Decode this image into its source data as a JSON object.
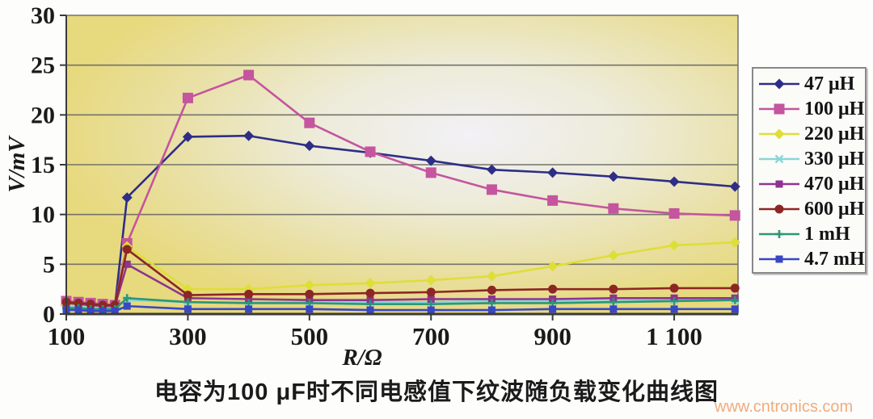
{
  "figure": {
    "caption": "电容为100 μF时不同电感值下纹波随负载变化曲线图",
    "watermark": "www.cntronics.com"
  },
  "colors": {
    "plot_bg_yellow": "#e8db82",
    "plot_bg_light": "#f2f1f6",
    "gridline": "#73736a",
    "axis": "#3a3a35",
    "legend_border": "#88888a",
    "watermark": "#f0a36e"
  },
  "chart_data": {
    "type": "line",
    "title": "电容为100 μF时不同电感值下纹波随负载变化曲线图",
    "xlabel": "R/Ω",
    "ylabel": "V/mV",
    "xlim": [
      100,
      1210
    ],
    "ylim": [
      0,
      30
    ],
    "grid": "horizontal",
    "legend_position": "right",
    "x_ticks": [
      100,
      300,
      500,
      700,
      900,
      1100
    ],
    "x_tick_labels": [
      "100",
      "300",
      "500",
      "700",
      "900",
      "1 100"
    ],
    "y_ticks": [
      0,
      5,
      10,
      15,
      20,
      25,
      30
    ],
    "x": [
      100,
      120,
      140,
      160,
      180,
      200,
      300,
      400,
      500,
      600,
      700,
      800,
      900,
      1000,
      1100,
      1200
    ],
    "series": [
      {
        "name": "47 μH",
        "color": "#2e2e87",
        "marker": "diamond",
        "values": [
          1.0,
          0.9,
          0.9,
          0.8,
          0.8,
          11.7,
          17.8,
          17.9,
          16.9,
          16.2,
          15.4,
          14.5,
          14.2,
          13.8,
          13.3,
          12.8
        ]
      },
      {
        "name": "100 μH",
        "color": "#c4559e",
        "marker": "square",
        "values": [
          1.3,
          1.2,
          1.1,
          1.0,
          0.9,
          7.1,
          21.7,
          24.0,
          19.2,
          16.3,
          14.2,
          12.5,
          11.4,
          10.6,
          10.1,
          9.9
        ]
      },
      {
        "name": "220 μH",
        "color": "#dede38",
        "marker": "diamond",
        "values": [
          0.9,
          0.8,
          0.8,
          0.7,
          0.7,
          6.8,
          2.5,
          2.5,
          2.9,
          3.1,
          3.4,
          3.8,
          4.8,
          5.9,
          6.9,
          7.2
        ]
      },
      {
        "name": "330 μH",
        "color": "#8ad6d6",
        "marker": "x",
        "values": [
          0.8,
          0.7,
          0.7,
          0.6,
          0.6,
          1.4,
          1.2,
          1.2,
          1.2,
          1.2,
          1.2,
          1.3,
          1.3,
          1.3,
          1.4,
          1.4
        ]
      },
      {
        "name": "470 μH",
        "color": "#8e3490",
        "marker": "square-small",
        "values": [
          1.1,
          1.0,
          0.9,
          0.8,
          0.8,
          5.0,
          1.6,
          1.5,
          1.4,
          1.4,
          1.5,
          1.5,
          1.5,
          1.6,
          1.6,
          1.6
        ]
      },
      {
        "name": "600 μH",
        "color": "#8c2723",
        "marker": "circle",
        "values": [
          1.2,
          1.1,
          1.0,
          0.9,
          0.9,
          6.5,
          1.9,
          2.0,
          2.0,
          2.1,
          2.2,
          2.4,
          2.5,
          2.5,
          2.6,
          2.6
        ]
      },
      {
        "name": "1 mH",
        "color": "#2e9674",
        "marker": "plus",
        "values": [
          0.6,
          0.6,
          0.5,
          0.5,
          0.5,
          1.6,
          1.2,
          1.1,
          1.1,
          1.0,
          1.0,
          1.1,
          1.1,
          1.2,
          1.3,
          1.4
        ]
      },
      {
        "name": "4.7 mH",
        "color": "#3947c4",
        "marker": "square-small",
        "values": [
          0.4,
          0.4,
          0.3,
          0.3,
          0.3,
          0.8,
          0.5,
          0.5,
          0.5,
          0.4,
          0.4,
          0.4,
          0.5,
          0.5,
          0.5,
          0.5
        ]
      }
    ]
  }
}
